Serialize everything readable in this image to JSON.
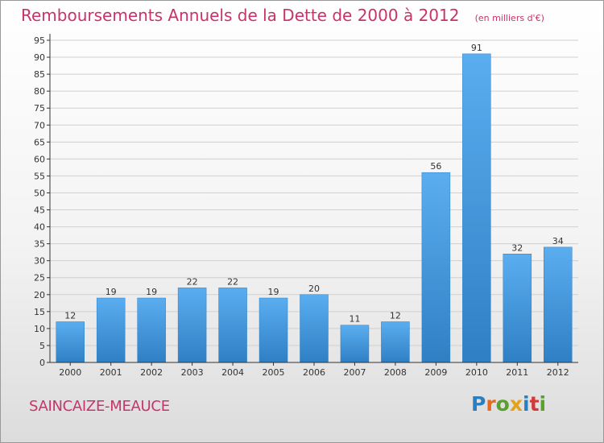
{
  "title": "Remboursements Annuels de la Dette de 2000 à 2012",
  "subtitle": "(en milliers d'€)",
  "commune": "SAINCAIZE-MEAUCE",
  "logo": {
    "text": "Proxiti",
    "letter_colors": [
      "#2a7fc1",
      "#e8681c",
      "#5aa02c",
      "#e3a21a",
      "#2a7fc1",
      "#d23a3a",
      "#5aa02c"
    ]
  },
  "colors": {
    "title": "#c8336a",
    "bar_light": "#5aaef0",
    "bar_dark": "#2f7fc4",
    "grid": "#d0d0d0",
    "axis": "#333333"
  },
  "chart_data": {
    "type": "bar",
    "categories": [
      "2000",
      "2001",
      "2002",
      "2003",
      "2004",
      "2005",
      "2006",
      "2007",
      "2008",
      "2009",
      "2010",
      "2011",
      "2012"
    ],
    "values": [
      12,
      19,
      19,
      22,
      22,
      19,
      20,
      11,
      12,
      56,
      91,
      32,
      34
    ],
    "ylim": [
      0,
      95
    ],
    "ytick_step": 5,
    "grid": true,
    "title": "Remboursements Annuels de la Dette de 2000 à 2012",
    "subtitle": "(en milliers d'€)",
    "xlabel": "",
    "ylabel": ""
  }
}
